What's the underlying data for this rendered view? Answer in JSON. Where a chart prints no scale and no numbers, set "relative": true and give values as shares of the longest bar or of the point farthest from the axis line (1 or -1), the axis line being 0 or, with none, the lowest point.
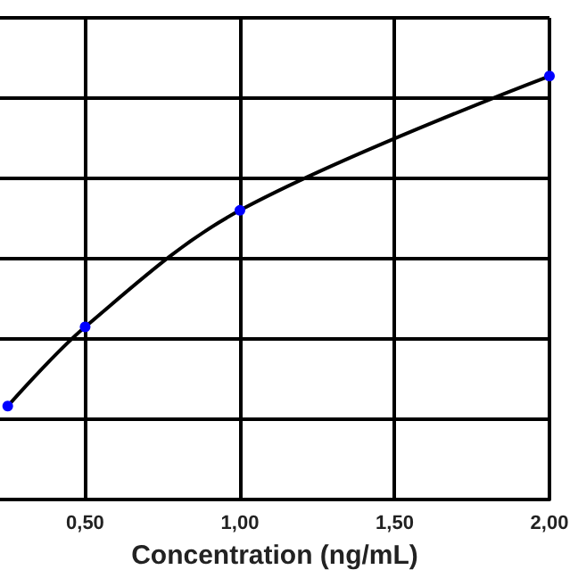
{
  "chart_data": {
    "type": "line",
    "xlabel": "Concentration (ng/mL)",
    "relative": true,
    "x": [
      0.25,
      0.5,
      1.0,
      2.0
    ],
    "series": [
      {
        "color": "#000000",
        "colors": [
          "#0000ff",
          "#0000ff",
          "#0000ff",
          "#0000ff"
        ],
        "values": [
          0.221,
          0.408,
          0.683,
          1
        ]
      }
    ],
    "xlim": [
      0.225,
      2.0
    ],
    "xticks": [
      {
        "value": 0.5,
        "label": "0,50"
      },
      {
        "value": 1.0,
        "label": "1,00"
      },
      {
        "value": 1.5,
        "label": "1,50"
      },
      {
        "value": 2.0,
        "label": "2,00"
      }
    ],
    "grid": true,
    "marker": "circle",
    "line_style": "solid"
  }
}
